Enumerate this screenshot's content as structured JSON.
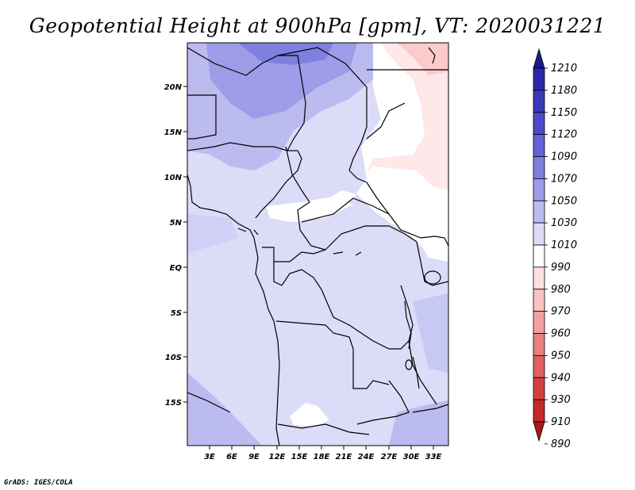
{
  "title": "Geopotential Height at 900hPa [gpm], VT: 2020031221",
  "credit": "GrADS: IGES/COLA",
  "map": {
    "region": "Central Africa",
    "lon_range": [
      0,
      35
    ],
    "lat_range": [
      -20,
      25
    ],
    "lat_ticks": [
      "20N",
      "15N",
      "10N",
      "5N",
      "EQ",
      "5S",
      "10S",
      "15S"
    ],
    "lon_ticks": [
      "3E",
      "6E",
      "9E",
      "12E",
      "15E",
      "18E",
      "21E",
      "24E",
      "27E",
      "30E",
      "33E"
    ]
  },
  "colorbar": {
    "levels": [
      "1210",
      "1180",
      "1150",
      "1120",
      "1090",
      "1070",
      "1050",
      "1030",
      "1010",
      "990",
      "980",
      "970",
      "960",
      "950",
      "940",
      "930",
      "910",
      "890"
    ],
    "colors": [
      "#1a1a8c",
      "#2828a8",
      "#3838b8",
      "#4a4acb",
      "#6464d8",
      "#7f7fe0",
      "#9c9ce8",
      "#bbbbf0",
      "#dcdcf8",
      "#ffffff",
      "#ffe0e0",
      "#fbc2c2",
      "#f2a0a0",
      "#e88080",
      "#de6060",
      "#d44040",
      "#c42828",
      "#a81818"
    ]
  }
}
